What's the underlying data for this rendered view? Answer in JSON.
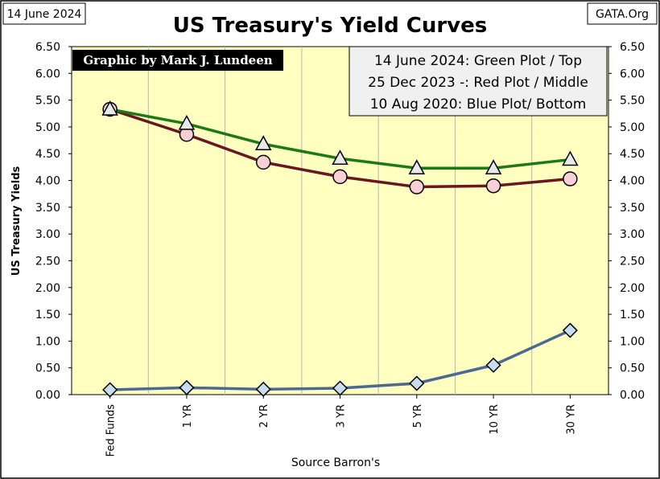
{
  "header": {
    "date_label": "14 June 2024",
    "site_label": "GATA.Org"
  },
  "credit": "Graphic by Mark J. Lundeen",
  "legend_lines": [
    "14 June 2024: Green Plot / Top",
    "25 Dec 2023 -: Red Plot / Middle",
    "10 Aug 2020: Blue Plot/ Bottom"
  ],
  "colors": {
    "plot_background": "#ffffc0",
    "green_series": "#1a7a14",
    "red_series": "#6b1424",
    "blue_series": "#4a6a94",
    "marker_fill_triangle": "#e8e8e8",
    "marker_fill_circle": "#f6d0d4",
    "marker_fill_diamond": "#c8dcf0"
  },
  "chart_data": {
    "type": "line",
    "title": "US Treasury's Yield Curves",
    "xlabel": "Source Barron's",
    "ylabel": "US Treasury Yields",
    "categories": [
      "Fed Funds",
      "1 YR",
      "2 YR",
      "3 YR",
      "5 YR",
      "10 YR",
      "30 YR"
    ],
    "ylim": [
      0,
      6.5
    ],
    "yticks": [
      "0.00",
      "0.50",
      "1.00",
      "1.50",
      "2.00",
      "2.50",
      "3.00",
      "3.50",
      "4.00",
      "4.50",
      "5.00",
      "5.50",
      "6.00",
      "6.50"
    ],
    "grid": "vertical",
    "secondary_y_axis": true,
    "series": [
      {
        "marker": "triangle",
        "color": "#1a7a14",
        "values": [
          5.33,
          5.06,
          4.68,
          4.41,
          4.23,
          4.23,
          4.39
        ]
      },
      {
        "marker": "circle",
        "color": "#6b1424",
        "values": [
          5.33,
          4.86,
          4.34,
          4.07,
          3.88,
          3.9,
          4.03
        ]
      },
      {
        "marker": "diamond",
        "color": "#4a6a94",
        "values": [
          0.09,
          0.13,
          0.1,
          0.12,
          0.21,
          0.55,
          1.2
        ]
      }
    ]
  }
}
